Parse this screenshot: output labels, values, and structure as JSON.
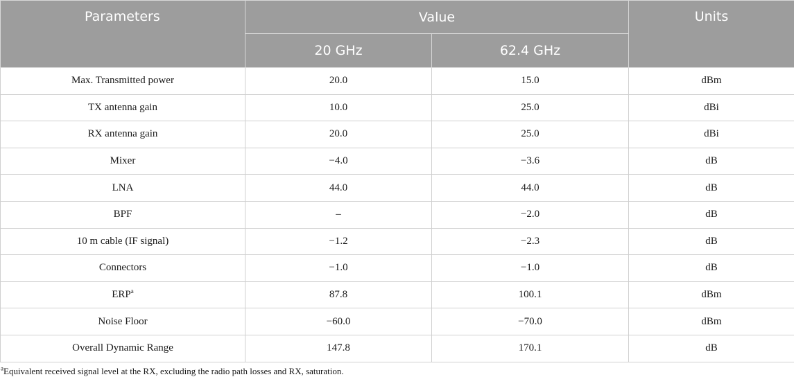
{
  "table": {
    "headers": {
      "parameters": "Parameters",
      "value": "Value",
      "units": "Units",
      "sub": [
        "20 GHz",
        "62.4 GHz"
      ]
    },
    "rows": [
      {
        "param": "Max. Transmitted power",
        "v20": "20.0",
        "v62": "15.0",
        "unit": "dBm"
      },
      {
        "param": "TX antenna gain",
        "v20": "10.0",
        "v62": "25.0",
        "unit": "dBi"
      },
      {
        "param": "RX antenna gain",
        "v20": "20.0",
        "v62": "25.0",
        "unit": "dBi"
      },
      {
        "param": "Mixer",
        "v20": "−4.0",
        "v62": "−3.6",
        "unit": "dB"
      },
      {
        "param": "LNA",
        "v20": "44.0",
        "v62": "44.0",
        "unit": "dB"
      },
      {
        "param": "BPF",
        "v20": "–",
        "v62": "−2.0",
        "unit": "dB"
      },
      {
        "param": "10 m cable (IF signal)",
        "v20": "−1.2",
        "v62": "−2.3",
        "unit": "dB"
      },
      {
        "param": "Connectors",
        "v20": "−1.0",
        "v62": "−1.0",
        "unit": "dB"
      },
      {
        "param": "ERP",
        "sup": "a",
        "v20": "87.8",
        "v62": "100.1",
        "unit": "dBm"
      },
      {
        "param": "Noise Floor",
        "v20": "−60.0",
        "v62": "−70.0",
        "unit": "dBm"
      },
      {
        "param": "Overall Dynamic Range",
        "v20": "147.8",
        "v62": "170.1",
        "unit": "dB"
      }
    ]
  },
  "footnote": {
    "marker": "a",
    "text": "Equivalent received signal level at the RX, excluding the radio path losses and RX, saturation."
  }
}
